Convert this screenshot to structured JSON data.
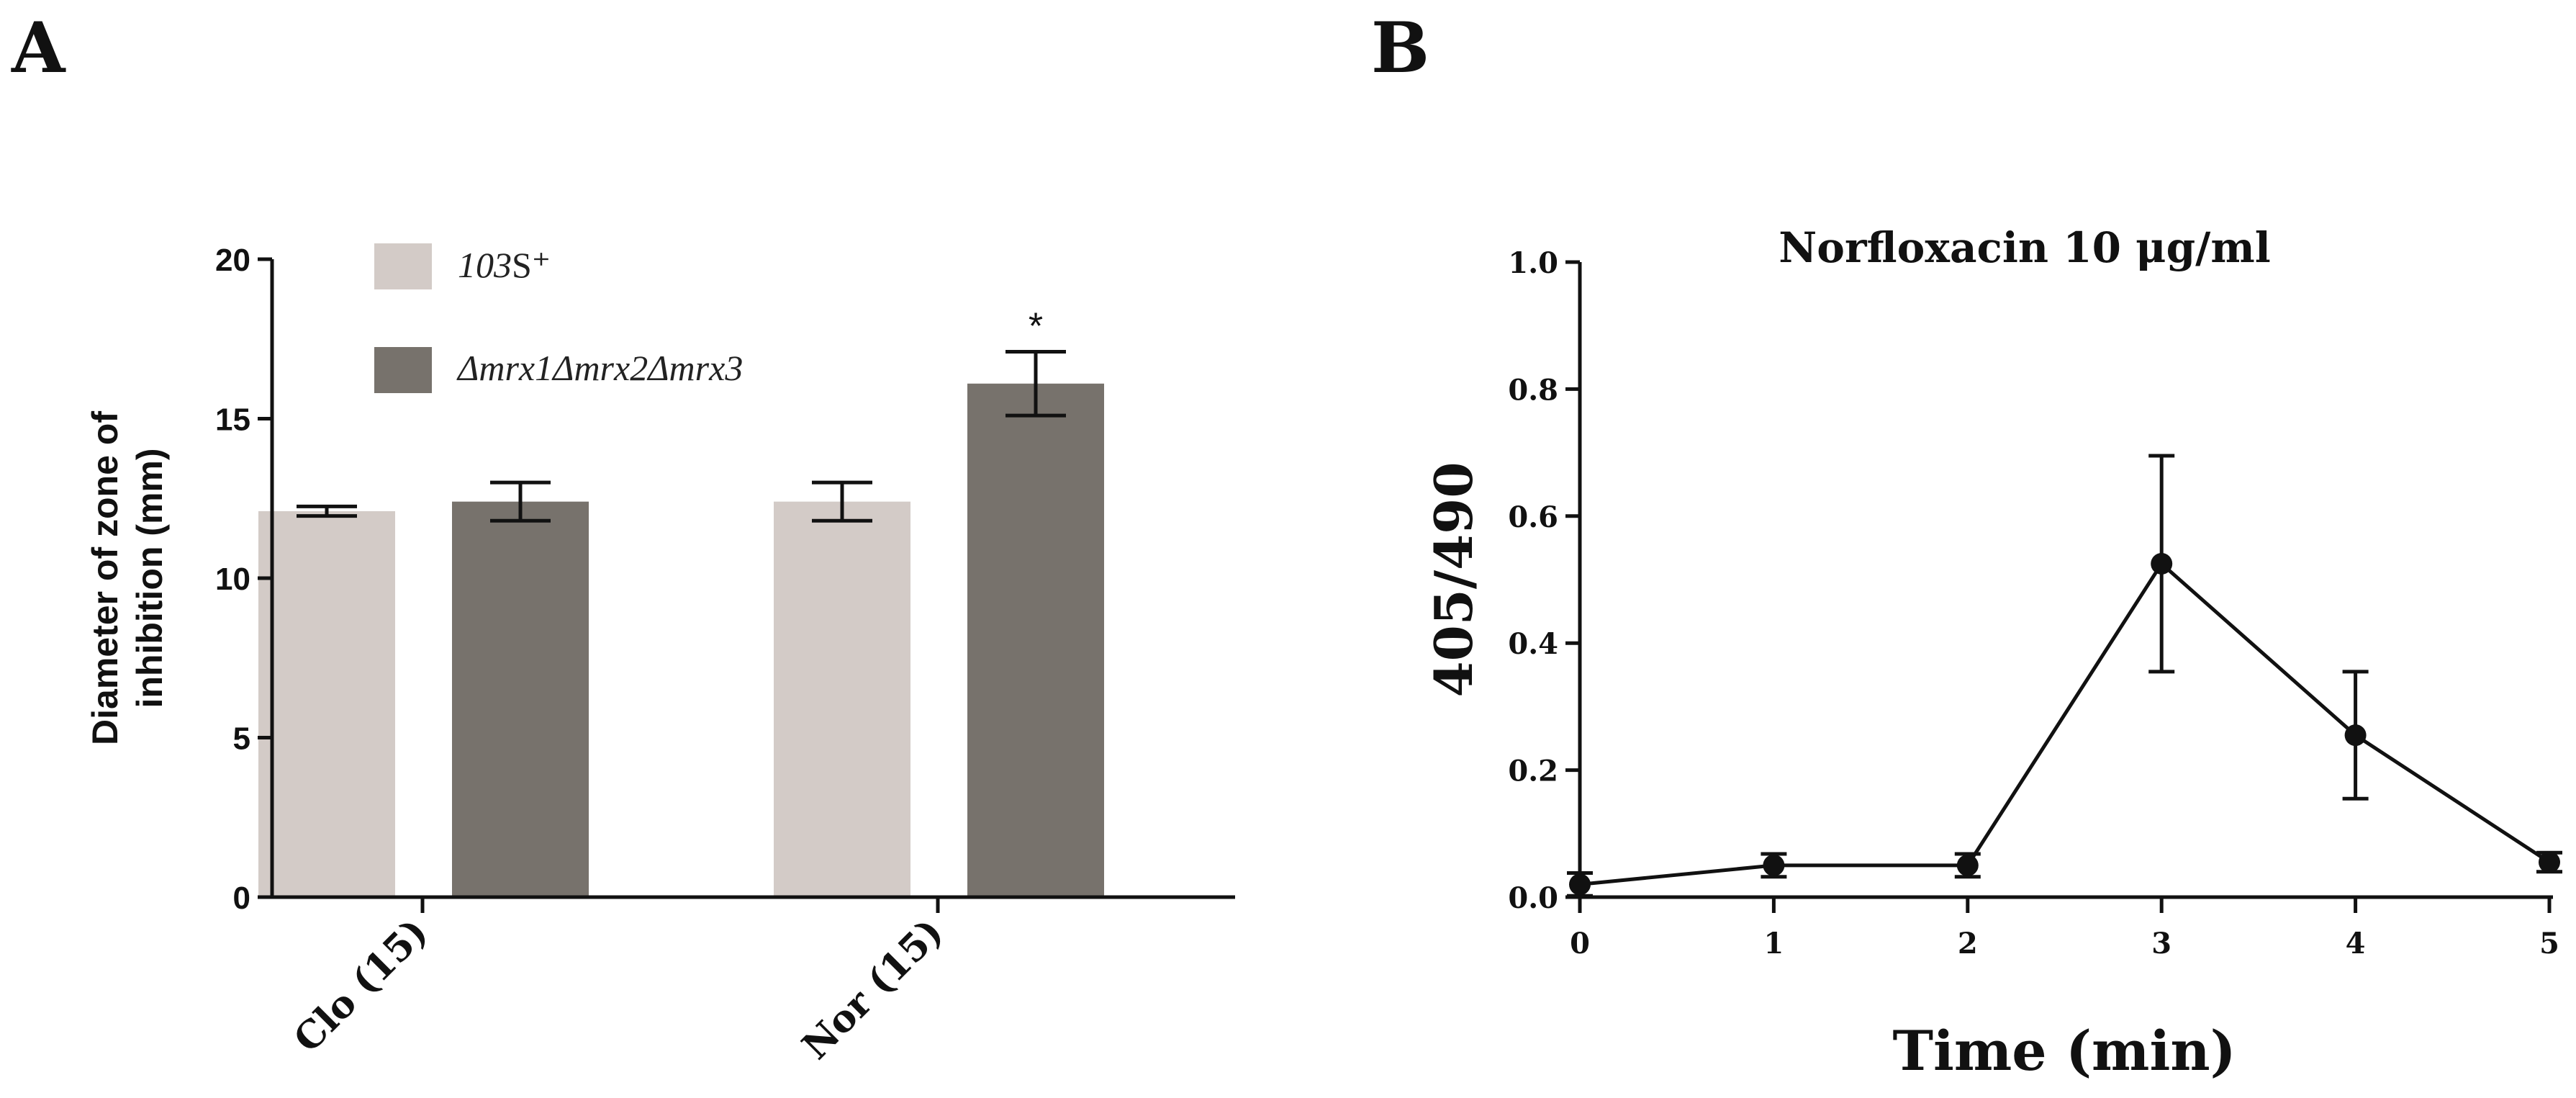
{
  "panels": {
    "a": {
      "letter": "A"
    },
    "b": {
      "letter": "B"
    }
  },
  "chart_data": [
    {
      "type": "bar",
      "panel": "A",
      "title": "",
      "xlabel": "",
      "ylabel": "Diameter of zone of inhibition (mm)",
      "ylabel_lines": [
        "Diameter of zone of",
        "inhibition (mm)"
      ],
      "ylim": [
        0,
        20
      ],
      "yticks": [
        0,
        5,
        10,
        15,
        20
      ],
      "categories": [
        "Clo (15)",
        "Nor (15)"
      ],
      "series": [
        {
          "name": "103S⁺",
          "legend_italic": "103",
          "legend_rest": "S⁺",
          "color": "#d3cbc7",
          "values": [
            12.1,
            12.4
          ],
          "errors": [
            0.15,
            0.6
          ]
        },
        {
          "name": "Δmrx1Δmrx2Δmrx3",
          "legend_italic": "Δmrx1Δmrx2Δmrx3",
          "legend_rest": "",
          "color": "#77726c",
          "values": [
            12.4,
            16.1
          ],
          "errors": [
            0.6,
            1.0
          ]
        }
      ],
      "annotations": [
        {
          "category": "Nor (15)",
          "series": "Δmrx1Δmrx2Δmrx3",
          "text": "*"
        }
      ],
      "legend_position": "top-left"
    },
    {
      "type": "line",
      "panel": "B",
      "title": "Norfloxacin 10 μg/ml",
      "xlabel": "Time (min)",
      "ylabel": "405/490",
      "xlim": [
        0,
        5
      ],
      "ylim": [
        0,
        1.0
      ],
      "xticks": [
        "0",
        "1",
        "2",
        "3",
        "4",
        "5"
      ],
      "yticks": [
        "0.0",
        "0.2",
        "0.4",
        "0.6",
        "0.8",
        "1.0"
      ],
      "x": [
        0,
        1,
        2,
        3,
        4,
        5
      ],
      "y": [
        0.02,
        0.05,
        0.05,
        0.525,
        0.255,
        0.055
      ],
      "errors": [
        0.018,
        0.018,
        0.018,
        0.17,
        0.1,
        0.015
      ],
      "color": "#111111"
    }
  ]
}
